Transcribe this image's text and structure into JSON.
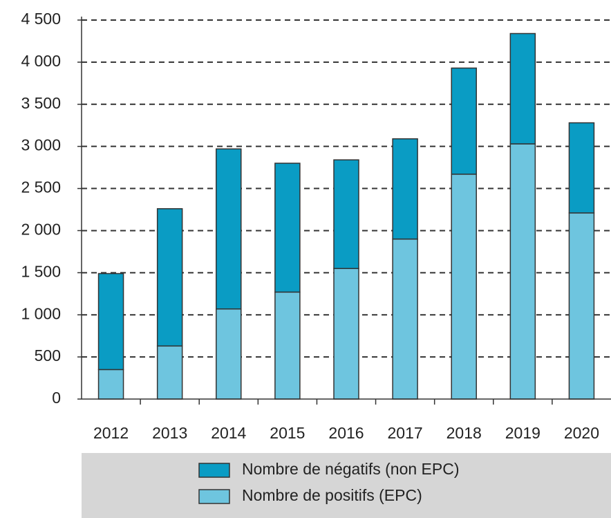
{
  "chart_data": {
    "type": "stacked-bar",
    "categories": [
      "2012",
      "2013",
      "2014",
      "2015",
      "2016",
      "2017",
      "2018",
      "2019",
      "2020"
    ],
    "series": [
      {
        "name": "Nombre de négatifs (non EPC)",
        "color": "#0a9cc4",
        "values": [
          1140,
          1630,
          1900,
          1530,
          1290,
          1190,
          1260,
          1310,
          1070
        ]
      },
      {
        "name": "Nombre de positifs (EPC)",
        "color": "#6ec5df",
        "values": [
          350,
          630,
          1070,
          1270,
          1550,
          1900,
          2670,
          3030,
          2210
        ]
      }
    ],
    "stack_order": [
      1,
      0
    ],
    "ylim": [
      0,
      4500
    ],
    "yticks": [
      0,
      500,
      {
        "value": 1000,
        "label": "1 000"
      },
      {
        "value": 1500,
        "label": "1 500"
      },
      {
        "value": 2000,
        "label": "2 000"
      },
      {
        "value": 2500,
        "label": "2 500"
      },
      {
        "value": 3000,
        "label": "3 000"
      },
      {
        "value": 3500,
        "label": "3 500"
      },
      {
        "value": 4000,
        "label": "4 000"
      },
      {
        "value": 4500,
        "label": "4 500"
      }
    ],
    "grid": true,
    "legend": "bottom"
  }
}
